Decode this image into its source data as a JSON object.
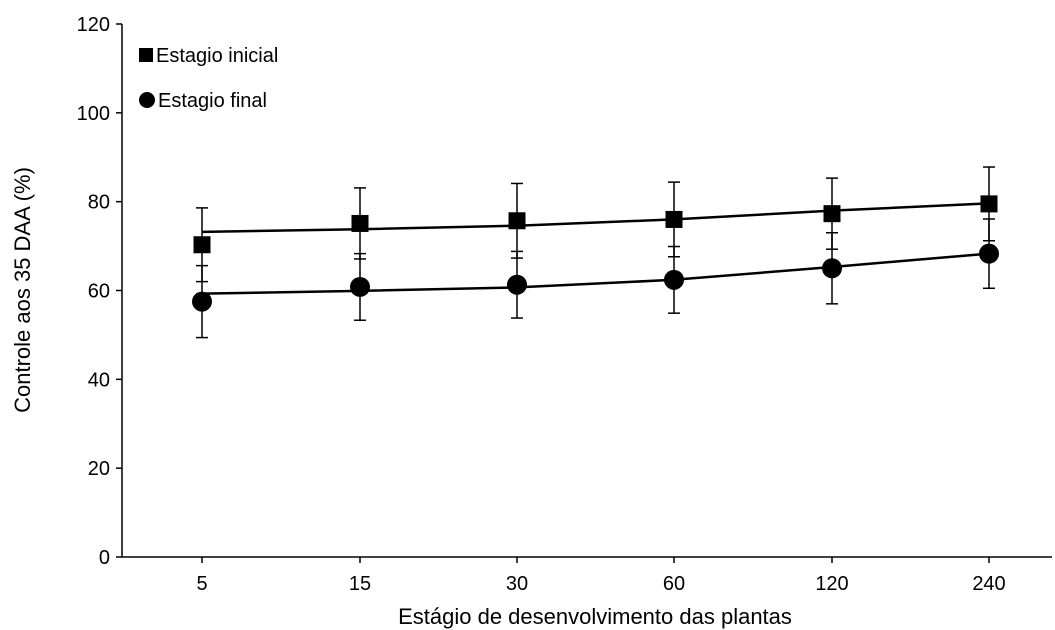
{
  "chart_data": {
    "type": "line",
    "title": "",
    "xlabel": "Estágio de desenvolvimento das plantas",
    "ylabel": "Controle aos 35 DAA (%)",
    "categories": [
      "5",
      "15",
      "30",
      "60",
      "120",
      "240"
    ],
    "ylim": [
      0,
      120
    ],
    "yticks": [
      "0",
      "20",
      "40",
      "60",
      "80",
      "100",
      "120"
    ],
    "grid": false,
    "legend_position": "top-left",
    "series": [
      {
        "name": "Estagio inicial",
        "marker": "square",
        "values": [
          70.3,
          75.1,
          75.7,
          76.0,
          77.3,
          79.5
        ],
        "error": [
          8.3,
          8.0,
          8.4,
          8.4,
          8.0,
          8.3
        ],
        "trend": [
          73.2,
          73.8,
          74.6,
          76.0,
          78.0,
          79.6
        ]
      },
      {
        "name": "Estagio final",
        "marker": "circle",
        "values": [
          57.5,
          60.8,
          61.3,
          62.4,
          65.0,
          68.3
        ],
        "error": [
          8.1,
          7.5,
          7.5,
          7.5,
          8.0,
          7.8
        ],
        "trend": [
          59.3,
          59.9,
          60.7,
          62.4,
          65.3,
          68.3
        ]
      }
    ],
    "colors": {
      "line": "#000000",
      "marker": "#000000"
    }
  }
}
